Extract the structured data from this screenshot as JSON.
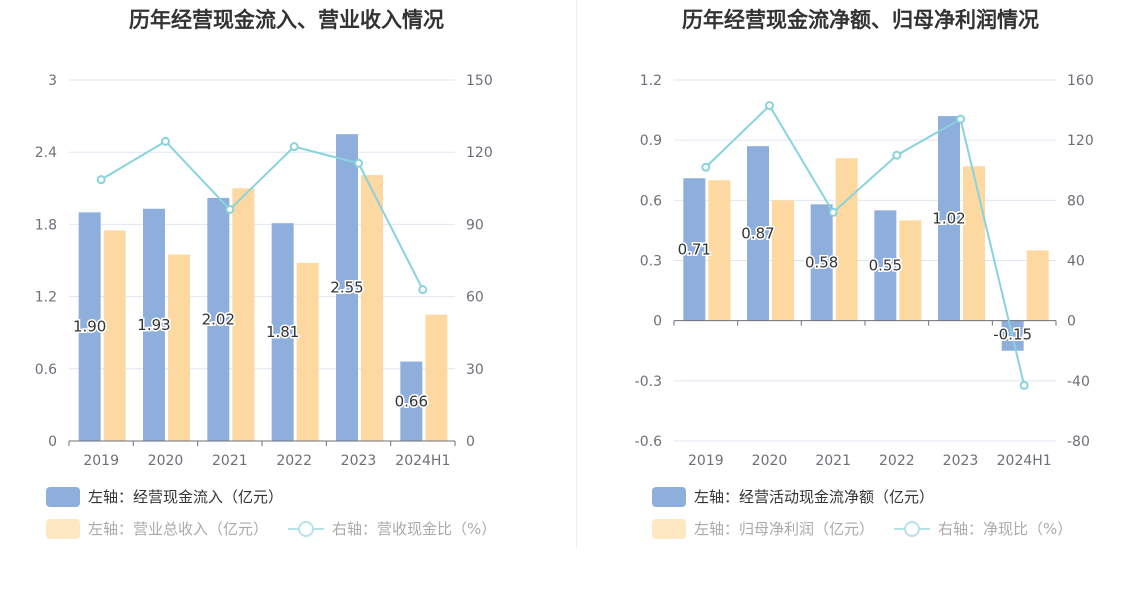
{
  "colors": {
    "bar1": "#8eaedb",
    "bar2": "#fdd9a1",
    "line": "#88d3dd",
    "axis": "#6e7079",
    "grid": "#e0e6f1"
  },
  "chart_data": [
    {
      "type": "bar+line",
      "title": "历年经营现金流入、营业收入情况",
      "categories": [
        "2019",
        "2020",
        "2021",
        "2022",
        "2023",
        "2024H1"
      ],
      "series": [
        {
          "name": "左轴：经营现金流入（亿元）",
          "axis": "left",
          "kind": "bar",
          "values": [
            1.9,
            1.93,
            2.02,
            1.81,
            2.55,
            0.66
          ],
          "labels": [
            "1.90",
            "1.93",
            "2.02",
            "1.81",
            "2.55",
            "0.66"
          ]
        },
        {
          "name": "左轴：营业总收入（亿元）",
          "axis": "left",
          "kind": "bar",
          "values": [
            1.75,
            1.55,
            2.1,
            1.48,
            2.21,
            1.05
          ]
        },
        {
          "name": "右轴：营收现金比（%）",
          "axis": "right",
          "kind": "line",
          "values": [
            108.6,
            124.5,
            96.2,
            122.3,
            115.4,
            62.9
          ]
        }
      ],
      "left_axis": {
        "min": 0,
        "max": 3,
        "ticks": [
          "0",
          "0.6",
          "1.2",
          "1.8",
          "2.4",
          "3"
        ]
      },
      "right_axis": {
        "min": 0,
        "max": 150,
        "ticks": [
          "0",
          "30",
          "60",
          "90",
          "120",
          "150"
        ]
      }
    },
    {
      "type": "bar+line",
      "title": "历年经营现金流净额、归母净利润情况",
      "categories": [
        "2019",
        "2020",
        "2021",
        "2022",
        "2023",
        "2024H1"
      ],
      "series": [
        {
          "name": "左轴：经营活动现金流净额（亿元）",
          "axis": "left",
          "kind": "bar",
          "values": [
            0.71,
            0.87,
            0.58,
            0.55,
            1.02,
            -0.15
          ],
          "labels": [
            "0.71",
            "0.87",
            "0.58",
            "0.55",
            "1.02",
            "-0.15"
          ]
        },
        {
          "name": "左轴：归母净利润（亿元）",
          "axis": "left",
          "kind": "bar",
          "values": [
            0.7,
            0.6,
            0.81,
            0.5,
            0.77,
            0.35
          ]
        },
        {
          "name": "右轴：净现比（%）",
          "axis": "right",
          "kind": "line",
          "values": [
            102,
            143,
            72,
            110,
            134,
            -43
          ]
        }
      ],
      "left_axis": {
        "min": -0.6,
        "max": 1.2,
        "ticks": [
          "-0.6",
          "-0.3",
          "0",
          "0.3",
          "0.6",
          "0.9",
          "1.2"
        ]
      },
      "right_axis": {
        "min": -80,
        "max": 160,
        "ticks": [
          "-80",
          "-40",
          "0",
          "40",
          "80",
          "120",
          "160"
        ]
      }
    }
  ]
}
